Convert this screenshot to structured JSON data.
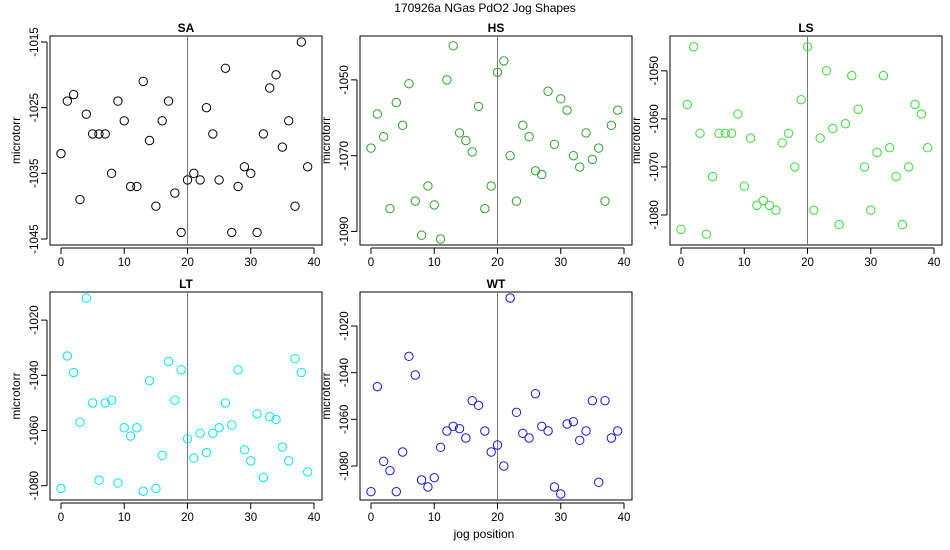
{
  "figure": {
    "suptitle": "170926a   NGas PdO2 Jog Shapes",
    "xlabel": "jog position",
    "ylabel": "microtorr"
  },
  "chart_data": [
    {
      "type": "scatter",
      "title": "SA",
      "color": "#000000",
      "xlim": [
        0,
        40
      ],
      "ylim": [
        -1045,
        -1015
      ],
      "xticks": [
        0,
        10,
        20,
        30,
        40
      ],
      "yticks": [
        -1045,
        -1035,
        -1025,
        -1015
      ],
      "vline": 20,
      "x": [
        0,
        1,
        2,
        3,
        4,
        5,
        6,
        7,
        8,
        9,
        10,
        11,
        12,
        13,
        14,
        15,
        16,
        17,
        18,
        19,
        20,
        21,
        22,
        23,
        24,
        25,
        26,
        27,
        28,
        29,
        30,
        31,
        32,
        33,
        34,
        35,
        36,
        37,
        38,
        39
      ],
      "y": [
        -1032,
        -1024,
        -1023,
        -1039,
        -1026,
        -1029,
        -1029,
        -1029,
        -1035,
        -1024,
        -1027,
        -1037,
        -1037,
        -1021,
        -1030,
        -1040,
        -1027,
        -1024,
        -1038,
        -1044,
        -1036,
        -1035,
        -1036,
        -1025,
        -1029,
        -1036,
        -1019,
        -1044,
        -1037,
        -1034,
        -1035,
        -1044,
        -1029,
        -1022,
        -1020,
        -1031,
        -1027,
        -1040,
        -1015,
        -1034
      ]
    },
    {
      "type": "scatter",
      "title": "HS",
      "color": "#2ca02c",
      "xlim": [
        0,
        40
      ],
      "ylim": [
        -1092,
        -1040
      ],
      "xticks": [
        0,
        10,
        20,
        30,
        40
      ],
      "yticks": [
        -1090,
        -1070,
        -1050
      ],
      "vline": 20,
      "x": [
        0,
        1,
        2,
        3,
        4,
        5,
        6,
        7,
        8,
        9,
        10,
        11,
        12,
        13,
        14,
        15,
        16,
        17,
        18,
        19,
        20,
        21,
        22,
        23,
        24,
        25,
        26,
        27,
        28,
        29,
        30,
        31,
        32,
        33,
        34,
        35,
        36,
        37,
        38,
        39
      ],
      "y": [
        -1068,
        -1059,
        -1065,
        -1084,
        -1056,
        -1062,
        -1051,
        -1082,
        -1091,
        -1078,
        -1083,
        -1092,
        -1050,
        -1041,
        -1064,
        -1066,
        -1069,
        -1057,
        -1084,
        -1078,
        -1048,
        -1045,
        -1070,
        -1082,
        -1062,
        -1065,
        -1074,
        -1075,
        -1053,
        -1067,
        -1055,
        -1058,
        -1070,
        -1073,
        -1064,
        -1071,
        -1068,
        -1082,
        -1062,
        -1058
      ]
    },
    {
      "type": "scatter",
      "title": "LS",
      "color": "#33dd33",
      "xlim": [
        0,
        40
      ],
      "ylim": [
        -1085,
        -1044
      ],
      "xticks": [
        0,
        10,
        20,
        30,
        40
      ],
      "yticks": [
        -1080,
        -1070,
        -1060,
        -1050
      ],
      "vline": 20,
      "x": [
        0,
        1,
        2,
        3,
        4,
        5,
        6,
        7,
        8,
        9,
        10,
        11,
        12,
        13,
        14,
        15,
        16,
        17,
        18,
        19,
        20,
        21,
        22,
        23,
        24,
        25,
        26,
        27,
        28,
        29,
        30,
        31,
        32,
        33,
        34,
        35,
        36,
        37,
        38,
        39
      ],
      "y": [
        -1083,
        -1057,
        -1045,
        -1063,
        -1084,
        -1072,
        -1063,
        -1063,
        -1063,
        -1059,
        -1074,
        -1064,
        -1078,
        -1077,
        -1078,
        -1079,
        -1065,
        -1063,
        -1070,
        -1056,
        -1045,
        -1079,
        -1064,
        -1050,
        -1062,
        -1082,
        -1061,
        -1051,
        -1058,
        -1070,
        -1079,
        -1067,
        -1051,
        -1066,
        -1072,
        -1082,
        -1070,
        -1057,
        -1059,
        -1066
      ]
    },
    {
      "type": "scatter",
      "title": "LT",
      "color": "#00e5ee",
      "xlim": [
        0,
        40
      ],
      "ylim": [
        -1083,
        -1012
      ],
      "xticks": [
        0,
        10,
        20,
        30,
        40
      ],
      "yticks": [
        -1080,
        -1060,
        -1040,
        -1020
      ],
      "vline": 20,
      "x": [
        0,
        1,
        2,
        3,
        4,
        5,
        6,
        7,
        8,
        9,
        10,
        11,
        12,
        13,
        14,
        15,
        16,
        17,
        18,
        19,
        20,
        21,
        22,
        23,
        24,
        25,
        26,
        27,
        28,
        29,
        30,
        31,
        32,
        33,
        34,
        35,
        36,
        37,
        38,
        39
      ],
      "y": [
        -1081,
        -1033,
        -1039,
        -1057,
        -1012,
        -1050,
        -1078,
        -1050,
        -1049,
        -1079,
        -1059,
        -1062,
        -1059,
        -1082,
        -1042,
        -1081,
        -1069,
        -1035,
        -1049,
        -1038,
        -1063,
        -1070,
        -1061,
        -1068,
        -1061,
        -1059,
        -1050,
        -1058,
        -1038,
        -1067,
        -1071,
        -1054,
        -1077,
        -1055,
        -1056,
        -1066,
        -1071,
        -1034,
        -1039,
        -1075
      ]
    },
    {
      "type": "scatter",
      "title": "WT",
      "color": "#1515dd",
      "xlim": [
        0,
        40
      ],
      "ylim": [
        -1092,
        -1008
      ],
      "xticks": [
        0,
        10,
        20,
        30,
        40
      ],
      "yticks": [
        -1080,
        -1060,
        -1040,
        -1020
      ],
      "vline": 20,
      "x": [
        0,
        1,
        2,
        3,
        4,
        5,
        6,
        7,
        8,
        9,
        10,
        11,
        12,
        13,
        14,
        15,
        16,
        17,
        18,
        19,
        20,
        21,
        22,
        23,
        24,
        25,
        26,
        27,
        28,
        29,
        30,
        31,
        32,
        33,
        34,
        35,
        36,
        37,
        38,
        39
      ],
      "y": [
        -1091,
        -1046,
        -1078,
        -1082,
        -1091,
        -1074,
        -1033,
        -1041,
        -1086,
        -1089,
        -1085,
        -1072,
        -1065,
        -1063,
        -1064,
        -1068,
        -1052,
        -1054,
        -1065,
        -1074,
        -1071,
        -1080,
        -1008,
        -1057,
        -1066,
        -1068,
        -1049,
        -1063,
        -1065,
        -1089,
        -1092,
        -1062,
        -1061,
        -1069,
        -1065,
        -1052,
        -1087,
        -1052,
        -1068,
        -1065
      ]
    }
  ]
}
